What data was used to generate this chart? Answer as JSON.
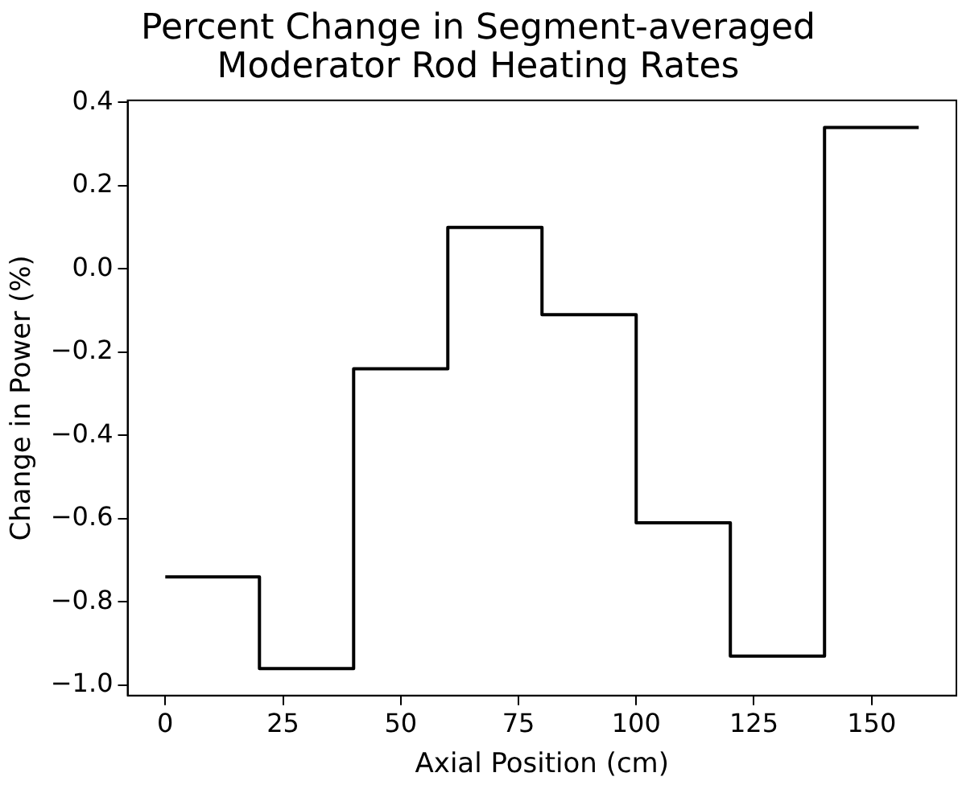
{
  "chart_data": {
    "type": "step",
    "title": "Percent Change in Segment-averaged\nModerator Rod Heating Rates",
    "xlabel": "Axial Position (cm)",
    "ylabel": "Change in Power (%)",
    "x": [
      0,
      20,
      40,
      60,
      80,
      100,
      120,
      140,
      160
    ],
    "series": [
      {
        "color": "#000000",
        "values": [
          -0.74,
          -0.96,
          -0.24,
          0.1,
          -0.11,
          -0.61,
          -0.93,
          0.34,
          0.34
        ]
      }
    ],
    "xlim": [
      -8,
      168
    ],
    "xticks": [
      0,
      25,
      50,
      75,
      100,
      125,
      150
    ],
    "ylim": [
      -1.025,
      0.405
    ],
    "yticks": [
      {
        "value": -1.0,
        "label": "−1.0"
      },
      {
        "value": -0.8,
        "label": "−0.8"
      },
      {
        "value": -0.6,
        "label": "−0.6"
      },
      {
        "value": -0.4,
        "label": "−0.4"
      },
      {
        "value": -0.2,
        "label": "−0.2"
      },
      {
        "value": 0,
        "label": "0.0"
      },
      {
        "value": 0.2,
        "label": "0.2"
      },
      {
        "value": 0.4,
        "label": "0.4"
      }
    ],
    "grid": false,
    "legend": false
  }
}
